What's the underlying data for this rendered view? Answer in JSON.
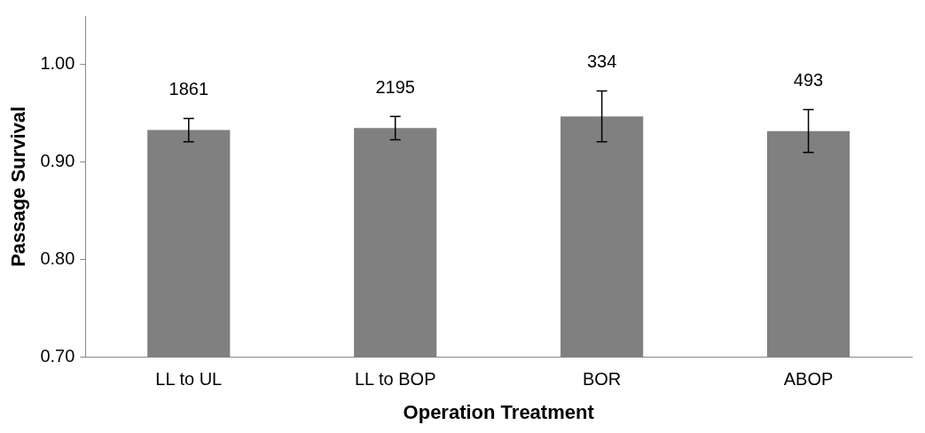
{
  "chart_data": {
    "type": "bar",
    "xlabel": "Operation Treatment",
    "ylabel": "Passage Survival",
    "categories": [
      "LL to UL",
      "LL to BOP",
      "BOR",
      "ABOP"
    ],
    "values": [
      0.933,
      0.935,
      0.947,
      0.932
    ],
    "color": "#808080",
    "errors": [
      0.012,
      0.012,
      0.026,
      0.022
    ],
    "annotations": [
      "1861",
      "2195",
      "334",
      "493"
    ],
    "ylim": [
      0.7,
      1.05
    ],
    "yticks": [
      {
        "value": 0.7,
        "label": "0.70"
      },
      {
        "value": 0.8,
        "label": "0.80"
      },
      {
        "value": 0.9,
        "label": "0.90"
      },
      {
        "value": 1.0,
        "label": "1.00"
      }
    ],
    "grid": false,
    "legend": false
  }
}
